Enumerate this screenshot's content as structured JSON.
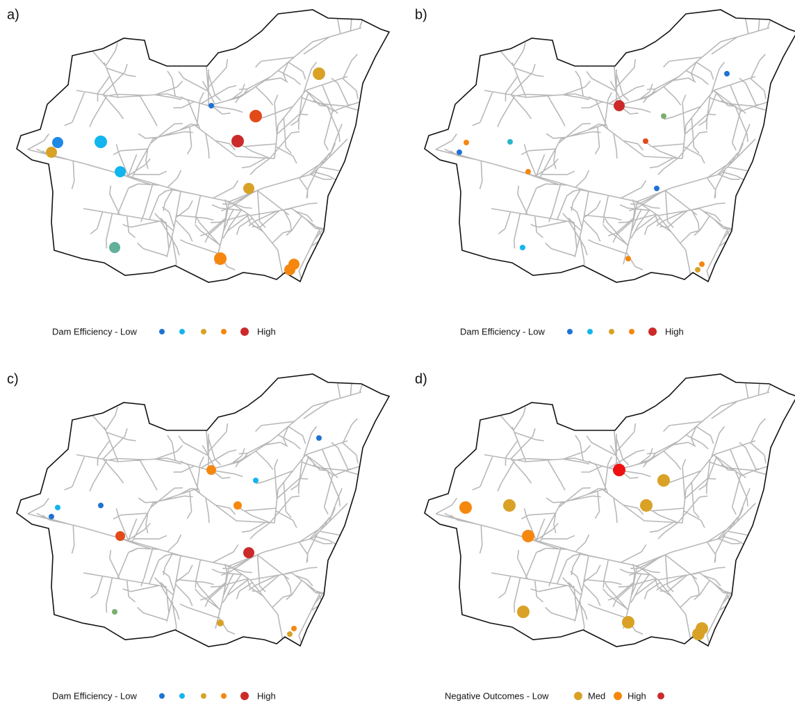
{
  "panels": [
    {
      "label": "a)",
      "legend": [
        "Dam Efficiency - Low",
        "High"
      ]
    },
    {
      "label": "b)",
      "legend": [
        "Dam Efficiency - Low",
        "High"
      ]
    },
    {
      "label": "c)",
      "legend": [
        "Dam Efficiency - Low",
        "High"
      ]
    },
    {
      "label": "d)",
      "legend": [
        "Negative Outcomes - Low",
        "Med",
        "High"
      ]
    }
  ]
}
